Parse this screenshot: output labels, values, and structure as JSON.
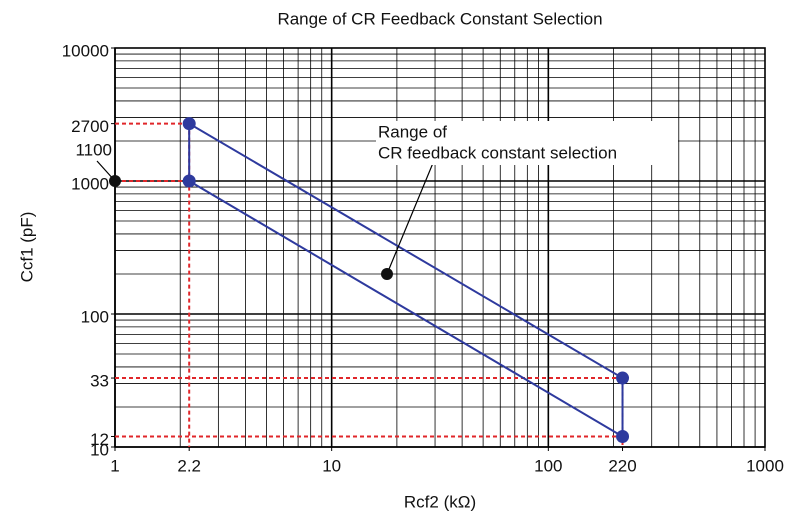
{
  "chart_data": {
    "type": "polygon",
    "title": "Range of CR Feedback Constant Selection",
    "x_label": "Rcf2   (kΩ)",
    "y_label": "Ccf1   (pF)",
    "x_scale": "log",
    "y_scale": "log",
    "xlim": [
      1,
      1000
    ],
    "ylim": [
      10,
      10000
    ],
    "xticks": [
      1,
      2.2,
      10,
      100,
      220,
      1000
    ],
    "yticks": [
      10,
      12,
      33,
      100,
      1000,
      2700,
      10000
    ],
    "grid": true,
    "minor_grid": true,
    "series": [
      {
        "name": "Range of CR feedback constant selection",
        "color": "#2e3a9e",
        "x": [
          2.2,
          2.2,
          220,
          220
        ],
        "values": [
          2700,
          1000,
          12,
          33
        ]
      }
    ],
    "guide_color": "#e0262a",
    "annotations": [
      {
        "lines": [
          "Range of",
          "CR feedback constant selection"
        ],
        "x": 18,
        "y": 200
      },
      {
        "text": "1100",
        "x": 1,
        "y": 1000
      }
    ]
  }
}
